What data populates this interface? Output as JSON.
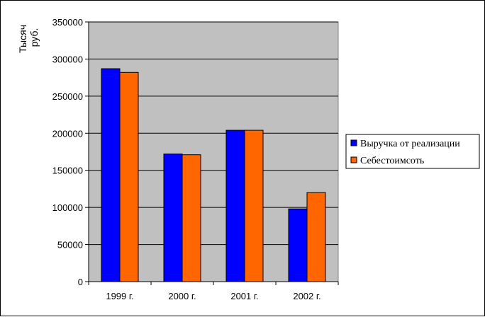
{
  "chart_data": {
    "type": "bar",
    "title": "",
    "xlabel": "",
    "ylabel": "Тысяч руб.",
    "ylabel_lines": [
      "Тысяч",
      "руб."
    ],
    "categories": [
      "1999 г.",
      "2000 г.",
      "2001 г.",
      "2002 г."
    ],
    "series": [
      {
        "name": "Выручка от реализации",
        "color": "#0000ff",
        "values": [
          287000,
          172000,
          204000,
          98000
        ]
      },
      {
        "name": "Себестоимсоть",
        "color": "#ff6600",
        "values": [
          282000,
          171000,
          204000,
          120000
        ]
      }
    ],
    "ylim": [
      0,
      350000
    ],
    "yticks": [
      "0",
      "50000",
      "100000",
      "150000",
      "200000",
      "250000",
      "300000",
      "350000"
    ],
    "grid": true,
    "plot_background": "#c0c0c0",
    "legend_position": "right"
  }
}
